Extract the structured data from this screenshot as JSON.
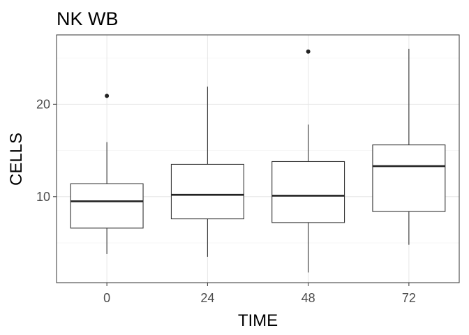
{
  "chart_data": {
    "type": "boxplot",
    "title": "NK WB",
    "xlabel": "TIME",
    "ylabel": "CELLS",
    "categories": [
      "0",
      "24",
      "48",
      "72"
    ],
    "ylim": [
      0.7,
      27.5
    ],
    "yticks": [
      10,
      20
    ],
    "ytick_labels": [
      "10",
      "20"
    ],
    "grid": true,
    "boxes": [
      {
        "category": "0",
        "whisker_low": 3.8,
        "q1": 6.6,
        "median": 9.5,
        "q3": 11.4,
        "whisker_high": 15.9,
        "outliers": [
          20.9
        ]
      },
      {
        "category": "24",
        "whisker_low": 3.5,
        "q1": 7.6,
        "median": 10.2,
        "q3": 13.5,
        "whisker_high": 21.9,
        "outliers": []
      },
      {
        "category": "48",
        "whisker_low": 1.8,
        "q1": 7.2,
        "median": 10.1,
        "q3": 13.8,
        "whisker_high": 17.8,
        "outliers": [
          25.7
        ]
      },
      {
        "category": "72",
        "whisker_low": 4.8,
        "q1": 8.4,
        "median": 13.3,
        "q3": 15.6,
        "whisker_high": 26.0,
        "outliers": []
      }
    ]
  }
}
